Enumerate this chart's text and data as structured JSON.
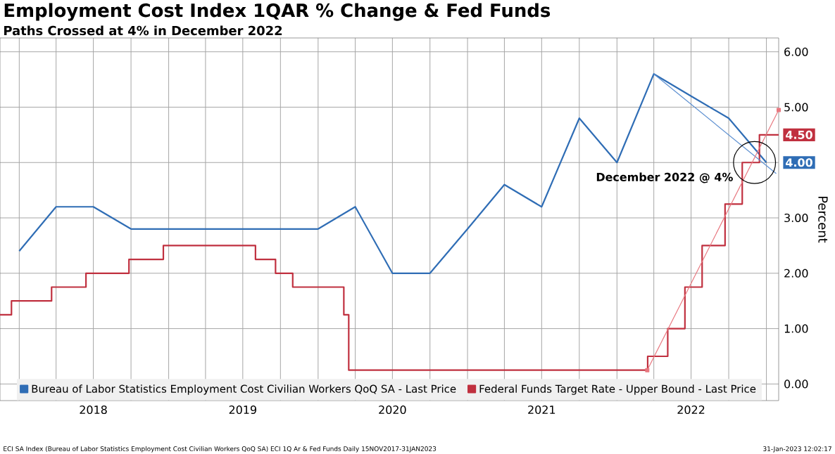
{
  "chart_data": {
    "type": "line",
    "title": "Employment Cost Index 1QAR % Change & Fed Funds",
    "subtitle": "Paths Crossed at 4% in December 2022",
    "ylabel": "Percent",
    "xlim": [
      "2017-11-15",
      "2023-01-31"
    ],
    "xticks": [
      {
        "value": "2018-01-01",
        "label": null
      },
      {
        "value": "2018-04-01",
        "label": null
      },
      {
        "value": "2018-07-01",
        "label": "2018"
      },
      {
        "value": "2018-10-01",
        "label": null
      },
      {
        "value": "2019-01-01",
        "label": null
      },
      {
        "value": "2019-04-01",
        "label": null
      },
      {
        "value": "2019-07-01",
        "label": "2019"
      },
      {
        "value": "2019-10-01",
        "label": null
      },
      {
        "value": "2020-01-01",
        "label": null
      },
      {
        "value": "2020-04-01",
        "label": null
      },
      {
        "value": "2020-07-01",
        "label": "2020"
      },
      {
        "value": "2020-10-01",
        "label": null
      },
      {
        "value": "2021-01-01",
        "label": null
      },
      {
        "value": "2021-04-01",
        "label": null
      },
      {
        "value": "2021-07-01",
        "label": "2021"
      },
      {
        "value": "2021-10-01",
        "label": null
      },
      {
        "value": "2022-01-01",
        "label": null
      },
      {
        "value": "2022-04-01",
        "label": null
      },
      {
        "value": "2022-07-01",
        "label": "2022"
      },
      {
        "value": "2022-10-01",
        "label": null
      },
      {
        "value": "2023-01-01",
        "label": null
      }
    ],
    "ylim": [
      -0.3,
      6.25
    ],
    "yticks": [
      {
        "value": 0,
        "label": "0.00"
      },
      {
        "value": 1,
        "label": "1.00"
      },
      {
        "value": 2,
        "label": "2.00"
      },
      {
        "value": 3,
        "label": "3.00"
      },
      {
        "value": 4,
        "label": null
      },
      {
        "value": 5,
        "label": "5.00"
      },
      {
        "value": 6,
        "label": "6.00"
      }
    ],
    "grid": true,
    "legend": "bottom",
    "series": [
      {
        "name": "Bureau of Labor Statistics Employment Cost Civilian Workers QoQ SA - Last Price",
        "color": "#2f6db5",
        "x": [
          "2018-01",
          "2018-04",
          "2018-07",
          "2018-10",
          "2019-01",
          "2019-04",
          "2019-07",
          "2019-10",
          "2020-01",
          "2020-04",
          "2020-07",
          "2020-10",
          "2021-01",
          "2021-04",
          "2021-07",
          "2021-10",
          "2022-01",
          "2022-04",
          "2022-07",
          "2022-10",
          "2023-01"
        ],
        "values": [
          2.4,
          3.2,
          3.2,
          2.8,
          2.8,
          2.8,
          2.8,
          2.8,
          2.8,
          3.2,
          2.0,
          2.0,
          2.8,
          3.6,
          3.2,
          4.8,
          4.0,
          5.6,
          5.2,
          4.8,
          4.0
        ],
        "value_labels": [
          null,
          null,
          null,
          null,
          null,
          null,
          null,
          null,
          null,
          null,
          null,
          null,
          null,
          null,
          null,
          null,
          null,
          null,
          null,
          null,
          "4.00"
        ]
      },
      {
        "name": "Federal Funds Target Rate - Upper Bound - Last Price",
        "type": "step",
        "color": "#c0303f",
        "x": [
          "2017-11-15",
          "2017-12-13",
          "2018-03-21",
          "2018-06-13",
          "2018-09-26",
          "2018-12-19",
          "2019-08-01",
          "2019-09-19",
          "2019-10-31",
          "2020-03-04",
          "2020-03-16",
          "2022-03-17",
          "2022-05-05",
          "2022-06-16",
          "2022-07-28",
          "2022-09-22",
          "2022-11-03",
          "2022-12-15",
          "2023-01-31"
        ],
        "values": [
          1.25,
          1.5,
          1.75,
          2.0,
          2.25,
          2.5,
          2.25,
          2.0,
          1.75,
          1.25,
          0.25,
          0.5,
          1.0,
          1.75,
          2.5,
          3.25,
          4.0,
          4.5,
          4.5
        ],
        "value_labels": [
          null,
          null,
          null,
          null,
          null,
          null,
          null,
          null,
          null,
          null,
          null,
          null,
          null,
          null,
          null,
          null,
          null,
          null,
          "4.50"
        ]
      },
      {
        "color": "#5b8ed0",
        "x": [
          "2022-04-01",
          "2023-01-25"
        ],
        "values": [
          5.6,
          3.8
        ]
      },
      {
        "color": "#e8777f",
        "marker": "square",
        "x": [
          "2022-03-16",
          "2023-01-31"
        ],
        "values": [
          0.25,
          4.95
        ]
      }
    ],
    "annotations": [
      {
        "text": "December 2022 @ 4%",
        "x": "2022-12-03",
        "y": 4
      },
      "ECI SA Index (Bureau of Labor Statistics Employment Cost Civilian Workers QoQ SA) ECI 1Q Ar & Fed Funds  Daily 15NOV2017-31JAN2023",
      "31-Jan-2023 12:02:17"
    ]
  }
}
